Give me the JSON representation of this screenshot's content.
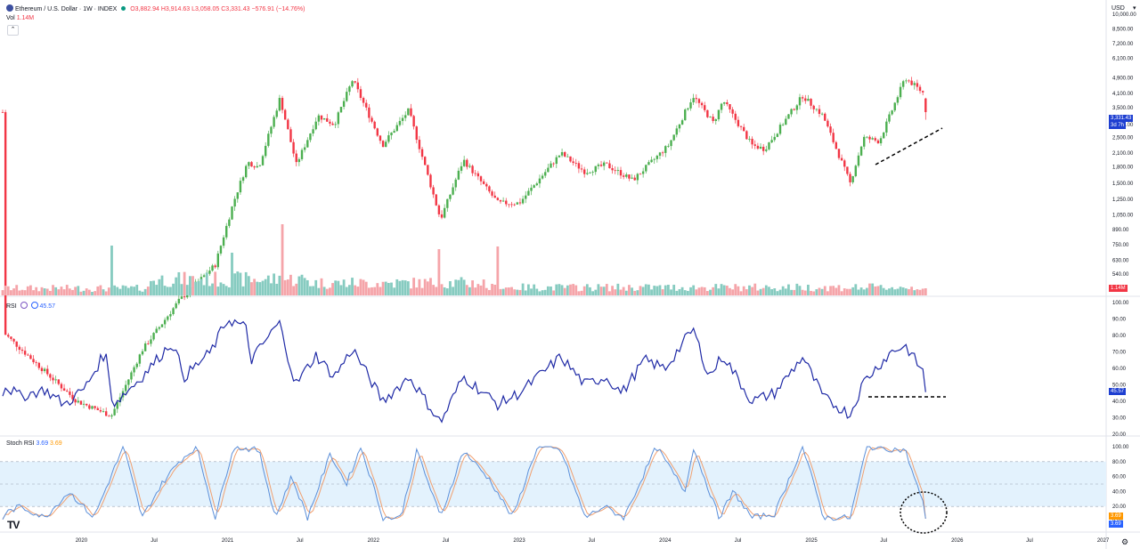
{
  "header": {
    "symbol_title": "Ethereum / U.S. Dollar · 1W · INDEX",
    "ohlc": {
      "o": "O3,882.94",
      "h": "H3,914.63",
      "l": "L3,058.05",
      "c": "C3,331.43",
      "chg": "−576.91 (−14.76%)"
    },
    "vol_label": "Vol",
    "vol_value": "1.14M",
    "currency": "USD"
  },
  "rsi_header": {
    "label": "RSI",
    "value": "45.57"
  },
  "stoch_header": {
    "label": "Stoch RSI",
    "k": "3.69",
    "d": "3.69"
  },
  "price_tags": {
    "last": "3,331.43",
    "countdown": "3d 7h",
    "vol": "1.14M",
    "rsi": "45.57",
    "stoch_k": "3.69",
    "stoch_d": "3.69"
  },
  "colors": {
    "up": "#089981",
    "up_candle": "#4caf50",
    "down": "#f23645",
    "rsi": "#1f2aa6",
    "stoch_k": "#5b8fd9",
    "stoch_d": "#f0a070",
    "band": "#e3f2fd"
  },
  "logo": "TV",
  "chart_data": [
    {
      "type": "candlestick",
      "title": "Ethereum / U.S. Dollar · 1W · INDEX",
      "y_scale": "log",
      "price_ticks": [
        10000,
        8500,
        7200,
        6100,
        4900,
        4100,
        3500,
        2900,
        2500,
        2100,
        1800,
        1500,
        1250,
        1050,
        890,
        750,
        630,
        540
      ],
      "price_tick_labels": [
        "10,000.00",
        "8,500.00",
        "7,200.00",
        "6,100.00",
        "4,900.00",
        "4,100.00",
        "3,500.00",
        "2,900.00",
        "2,500.00",
        "2,100.00",
        "1,800.00",
        "1,500.00",
        "1,250.00",
        "1,050.00",
        "890.00",
        "750.00",
        "630.00",
        "540.00"
      ],
      "x_ticks": [
        "2020",
        "Jul",
        "2021",
        "Jul",
        "2022",
        "Jul",
        "2023",
        "Jul",
        "2024",
        "Jul",
        "2025",
        "Jul",
        "2026",
        "Jul",
        "2027"
      ],
      "x_tick_dates": [
        "2020-01-01",
        "2020-07-01",
        "2021-01-01",
        "2021-07-01",
        "2022-01-01",
        "2022-07-01",
        "2023-01-01",
        "2023-07-01",
        "2024-01-01",
        "2024-07-01",
        "2025-01-01",
        "2025-07-01",
        "2026-01-01",
        "2026-07-01",
        "2027-01-01"
      ],
      "close_anchors": [
        [
          "2019-06-20",
          280
        ],
        [
          "2019-09-20",
          190
        ],
        [
          "2019-12-20",
          130
        ],
        [
          "2020-03-16",
          110
        ],
        [
          "2020-06-01",
          230
        ],
        [
          "2020-09-01",
          400
        ],
        [
          "2020-12-01",
          600
        ],
        [
          "2021-01-15",
          1200
        ],
        [
          "2021-02-20",
          1900
        ],
        [
          "2021-03-20",
          1800
        ],
        [
          "2021-05-12",
          3900
        ],
        [
          "2021-06-22",
          1850
        ],
        [
          "2021-08-15",
          3200
        ],
        [
          "2021-09-25",
          2900
        ],
        [
          "2021-11-10",
          4800
        ],
        [
          "2022-01-24",
          2300
        ],
        [
          "2022-03-30",
          3400
        ],
        [
          "2022-06-18",
          1000
        ],
        [
          "2022-08-14",
          1950
        ],
        [
          "2022-11-09",
          1200
        ],
        [
          "2023-01-01",
          1200
        ],
        [
          "2023-04-15",
          2100
        ],
        [
          "2023-06-15",
          1700
        ],
        [
          "2023-08-05",
          1850
        ],
        [
          "2023-10-12",
          1550
        ],
        [
          "2024-01-10",
          2300
        ],
        [
          "2024-03-11",
          4000
        ],
        [
          "2024-05-01",
          2950
        ],
        [
          "2024-05-25",
          3800
        ],
        [
          "2024-08-05",
          2300
        ],
        [
          "2024-09-06",
          2200
        ],
        [
          "2024-12-10",
          4000
        ],
        [
          "2025-01-30",
          3200
        ],
        [
          "2025-04-08",
          1500
        ],
        [
          "2025-05-12",
          2500
        ],
        [
          "2025-06-20",
          2400
        ],
        [
          "2025-08-24",
          4900
        ],
        [
          "2025-10-10",
          4100
        ],
        [
          "2025-10-20",
          3331.43
        ]
      ],
      "last": {
        "open": 3882.94,
        "high": 3914.63,
        "low": 3058.05,
        "close": 3331.43
      }
    },
    {
      "type": "bar",
      "title": "Vol",
      "last_value": "1.14M",
      "shape": "elevated 2020-2021, spikes mid-2021 and mid-2022, lower and steadier from 2023"
    },
    {
      "type": "line",
      "title": "RSI",
      "y_ticks": [
        100,
        90,
        80,
        70,
        60,
        50,
        40,
        30,
        20
      ],
      "y_tick_labels": [
        "100.00",
        "90.00",
        "80.00",
        "70.00",
        "60.00",
        "50.00",
        "40.00",
        "30.00",
        "20.00"
      ],
      "y_range": [
        20,
        100
      ],
      "last_value": 45.57,
      "anchors": [
        [
          "2019-06-20",
          50
        ],
        [
          "2019-08-01",
          43
        ],
        [
          "2019-10-01",
          47
        ],
        [
          "2019-11-20",
          38
        ],
        [
          "2020-01-10",
          48
        ],
        [
          "2020-03-01",
          70
        ],
        [
          "2020-03-20",
          38
        ],
        [
          "2020-06-01",
          55
        ],
        [
          "2020-08-15",
          76
        ],
        [
          "2020-09-15",
          55
        ],
        [
          "2020-11-20",
          70
        ],
        [
          "2021-01-01",
          90
        ],
        [
          "2021-02-15",
          85
        ],
        [
          "2021-03-01",
          65
        ],
        [
          "2021-05-10",
          88
        ],
        [
          "2021-06-20",
          50
        ],
        [
          "2021-08-10",
          68
        ],
        [
          "2021-09-25",
          55
        ],
        [
          "2021-11-10",
          72
        ],
        [
          "2022-01-24",
          40
        ],
        [
          "2022-04-01",
          55
        ],
        [
          "2022-06-18",
          27
        ],
        [
          "2022-08-14",
          55
        ],
        [
          "2022-11-09",
          38
        ],
        [
          "2023-01-01",
          45
        ],
        [
          "2023-04-15",
          67
        ],
        [
          "2023-06-15",
          50
        ],
        [
          "2023-08-05",
          55
        ],
        [
          "2023-09-15",
          45
        ],
        [
          "2023-11-10",
          65
        ],
        [
          "2024-01-01",
          60
        ],
        [
          "2024-03-11",
          84
        ],
        [
          "2024-04-20",
          55
        ],
        [
          "2024-05-25",
          68
        ],
        [
          "2024-08-05",
          40
        ],
        [
          "2024-10-01",
          45
        ],
        [
          "2024-12-10",
          67
        ],
        [
          "2025-02-01",
          42
        ],
        [
          "2025-04-08",
          32
        ],
        [
          "2025-05-12",
          52
        ],
        [
          "2025-07-20",
          70
        ],
        [
          "2025-08-24",
          74
        ],
        [
          "2025-10-10",
          57
        ],
        [
          "2025-10-20",
          45.57
        ]
      ]
    },
    {
      "type": "line",
      "title": "Stoch RSI",
      "series": [
        {
          "name": "K",
          "last": 3.69
        },
        {
          "name": "D",
          "last": 3.69
        }
      ],
      "y_ticks": [
        100,
        80,
        60,
        40,
        20,
        0
      ],
      "y_tick_labels": [
        "100.00",
        "80.00",
        "60.00",
        "40.00",
        "20.00",
        "0.00"
      ],
      "y_range": [
        0,
        100
      ],
      "band": [
        20,
        80
      ],
      "anchors": [
        [
          "2019-06-20",
          10
        ],
        [
          "2019-08-01",
          20
        ],
        [
          "2019-10-01",
          5
        ],
        [
          "2019-12-01",
          40
        ],
        [
          "2020-02-01",
          5
        ],
        [
          "2020-04-15",
          100
        ],
        [
          "2020-06-01",
          5
        ],
        [
          "2020-07-20",
          50
        ],
        [
          "2020-09-01",
          80
        ],
        [
          "2020-10-15",
          100
        ],
        [
          "2020-12-01",
          5
        ],
        [
          "2021-01-15",
          100
        ],
        [
          "2021-03-20",
          95
        ],
        [
          "2021-05-01",
          5
        ],
        [
          "2021-06-10",
          60
        ],
        [
          "2021-07-20",
          5
        ],
        [
          "2021-09-15",
          90
        ],
        [
          "2021-10-25",
          50
        ],
        [
          "2021-12-01",
          100
        ],
        [
          "2022-01-25",
          5
        ],
        [
          "2022-03-10",
          5
        ],
        [
          "2022-04-20",
          95
        ],
        [
          "2022-06-18",
          5
        ],
        [
          "2022-08-14",
          95
        ],
        [
          "2022-10-20",
          55
        ],
        [
          "2022-12-15",
          5
        ],
        [
          "2023-02-15",
          100
        ],
        [
          "2023-04-15",
          95
        ],
        [
          "2023-06-15",
          5
        ],
        [
          "2023-08-01",
          20
        ],
        [
          "2023-09-20",
          5
        ],
        [
          "2023-12-10",
          100
        ],
        [
          "2024-02-20",
          40
        ],
        [
          "2024-03-11",
          100
        ],
        [
          "2024-05-15",
          5
        ],
        [
          "2024-06-20",
          40
        ],
        [
          "2024-08-05",
          5
        ],
        [
          "2024-10-01",
          10
        ],
        [
          "2024-12-10",
          100
        ],
        [
          "2025-02-01",
          5
        ],
        [
          "2025-04-08",
          5
        ],
        [
          "2025-05-20",
          100
        ],
        [
          "2025-08-24",
          95
        ],
        [
          "2025-10-10",
          20
        ],
        [
          "2025-10-20",
          3.69
        ]
      ]
    }
  ]
}
